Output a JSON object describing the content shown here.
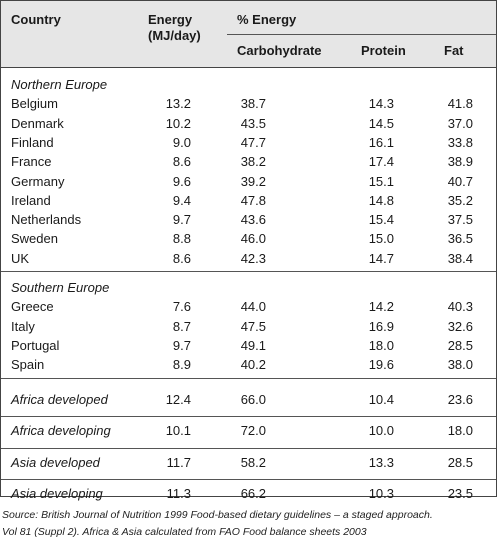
{
  "header": {
    "country": "Country",
    "energy": "Energy",
    "energy_unit": "(MJ/day)",
    "pct_energy": "% Energy",
    "carbohydrate": "Carbohydrate",
    "protein": "Protein",
    "fat": "Fat"
  },
  "groups": [
    {
      "title": "Northern Europe",
      "rows": [
        {
          "country": "Belgium",
          "energy": "13.2",
          "carb": "38.7",
          "protein": "14.3",
          "fat": "41.8"
        },
        {
          "country": "Denmark",
          "energy": "10.2",
          "carb": "43.5",
          "protein": "14.5",
          "fat": "37.0"
        },
        {
          "country": "Finland",
          "energy": "9.0",
          "carb": "47.7",
          "protein": "16.1",
          "fat": "33.8"
        },
        {
          "country": "France",
          "energy": "8.6",
          "carb": "38.2",
          "protein": "17.4",
          "fat": "38.9"
        },
        {
          "country": "Germany",
          "energy": "9.6",
          "carb": "39.2",
          "protein": "15.1",
          "fat": "40.7"
        },
        {
          "country": "Ireland",
          "energy": "9.4",
          "carb": "47.8",
          "protein": "14.8",
          "fat": "35.2"
        },
        {
          "country": "Netherlands",
          "energy": "9.7",
          "carb": "43.6",
          "protein": "15.4",
          "fat": "37.5"
        },
        {
          "country": "Sweden",
          "energy": "8.8",
          "carb": "46.0",
          "protein": "15.0",
          "fat": "36.5"
        },
        {
          "country": "UK",
          "energy": "8.6",
          "carb": "42.3",
          "protein": "14.7",
          "fat": "38.4"
        }
      ]
    },
    {
      "title": "Southern Europe",
      "rows": [
        {
          "country": "Greece",
          "energy": "7.6",
          "carb": "44.0",
          "protein": "14.2",
          "fat": "40.3"
        },
        {
          "country": "Italy",
          "energy": "8.7",
          "carb": "47.5",
          "protein": "16.9",
          "fat": "32.6"
        },
        {
          "country": "Portugal",
          "energy": "9.7",
          "carb": "49.1",
          "protein": "18.0",
          "fat": "28.5"
        },
        {
          "country": "Spain",
          "energy": "8.9",
          "carb": "40.2",
          "protein": "19.6",
          "fat": "38.0"
        }
      ]
    }
  ],
  "regions": [
    {
      "country": "Africa developed",
      "energy": "12.4",
      "carb": "66.0",
      "protein": "10.4",
      "fat": "23.6"
    },
    {
      "country": "Africa developing",
      "energy": "10.1",
      "carb": "72.0",
      "protein": "10.0",
      "fat": "18.0"
    },
    {
      "country": "Asia developed",
      "energy": "11.7",
      "carb": "58.2",
      "protein": "13.3",
      "fat": "28.5"
    },
    {
      "country": "Asia developing",
      "energy": "11.3",
      "carb": "66.2",
      "protein": "10.3",
      "fat": "23.5"
    }
  ],
  "source": {
    "line1": "Source: British Journal of Nutrition 1999 Food-based dietary guidelines – a staged approach.",
    "line2": "Vol 81 (Suppl 2). Africa & Asia calculated from FAO Food balance sheets 2003"
  }
}
